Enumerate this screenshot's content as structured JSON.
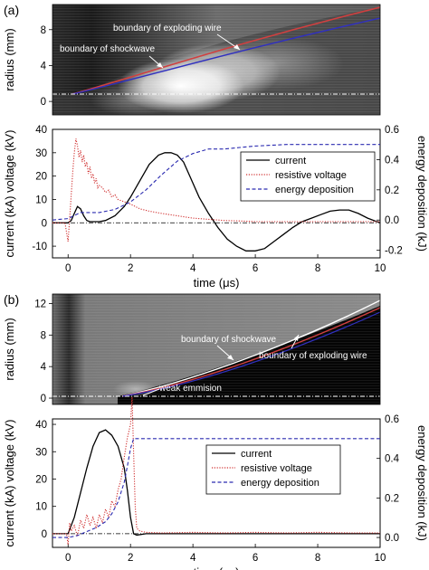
{
  "figure": {
    "panels": [
      {
        "label": "(a)",
        "streak": {
          "ylabel": "radius (mm)",
          "yticks": [
            0,
            4,
            8
          ],
          "ylim": [
            -1.5,
            10.8
          ],
          "annotations": [
            {
              "text": "boundary of exploding wire"
            },
            {
              "text": "boundary of shockwave"
            }
          ]
        }
      },
      {
        "label": "(b)",
        "streak": {
          "ylabel": "radius (mm)",
          "yticks": [
            0,
            4,
            8,
            12
          ],
          "ylim": [
            -0.8,
            13.2
          ],
          "annotations": [
            {
              "text": "boundary of shockwave"
            },
            {
              "text": "boundary of exploding wire"
            },
            {
              "text": "weak emmision"
            }
          ]
        }
      }
    ]
  },
  "chart_data": [
    {
      "type": "line",
      "panel": "(a)",
      "xlabel": "time (μs)",
      "ylabel_left": "current (kA) voltage (kV)",
      "ylabel_right": "energy deposition (kJ)",
      "xlim": [
        -0.5,
        10
      ],
      "ylim_left": [
        -15,
        40
      ],
      "ylim_right": [
        -0.25,
        0.6
      ],
      "xticks": [
        0,
        2,
        4,
        6,
        8,
        10
      ],
      "yticks_left": [
        -10,
        0,
        10,
        20,
        30,
        40
      ],
      "yticks_right": [
        -0.2,
        0.0,
        0.2,
        0.4,
        0.6
      ],
      "legend_position": "right",
      "series": [
        {
          "name": "current",
          "color": "#000000",
          "style": "solid",
          "axis": "left",
          "x": [
            -0.5,
            0,
            0.1,
            0.2,
            0.3,
            0.4,
            0.5,
            0.6,
            0.7,
            0.8,
            1.0,
            1.2,
            1.5,
            1.8,
            2.0,
            2.3,
            2.6,
            2.9,
            3.1,
            3.3,
            3.5,
            3.7,
            3.9,
            4.2,
            4.5,
            4.8,
            5.1,
            5.4,
            5.7,
            6.0,
            6.3,
            6.6,
            6.9,
            7.2,
            7.5,
            7.8,
            8.1,
            8.4,
            8.7,
            9.0,
            9.3,
            9.6,
            10.0
          ],
          "y": [
            0,
            0,
            1,
            4,
            7,
            6,
            3,
            1,
            0.5,
            0.5,
            0.5,
            1,
            3,
            7,
            11,
            18,
            25,
            29,
            30,
            30,
            29,
            26,
            20,
            11,
            4,
            -2,
            -7,
            -10,
            -12,
            -12,
            -11,
            -8,
            -5,
            -2,
            0.5,
            2,
            3.5,
            5,
            5.5,
            5.5,
            4,
            2,
            0
          ]
        },
        {
          "name": "resistive voltage",
          "color": "#d03030",
          "style": "dotted",
          "axis": "left",
          "x": [
            -0.5,
            -0.1,
            0,
            0.05,
            0.1,
            0.15,
            0.2,
            0.25,
            0.3,
            0.35,
            0.4,
            0.45,
            0.5,
            0.55,
            0.6,
            0.65,
            0.7,
            0.75,
            0.8,
            0.85,
            0.9,
            0.95,
            1.0,
            1.1,
            1.2,
            1.3,
            1.4,
            1.5,
            1.6,
            1.8,
            2.0,
            2.3,
            2.6,
            3.0,
            3.5,
            4.0,
            4.5,
            5.0,
            5.5,
            6.0,
            7.0,
            8.0,
            9.0,
            10.0
          ],
          "y": [
            0,
            0,
            -8,
            2,
            12,
            22,
            30,
            36,
            33,
            28,
            31,
            26,
            29,
            24,
            26,
            21,
            24,
            19,
            21,
            17,
            19,
            15,
            16,
            15,
            13,
            14,
            11,
            12,
            10,
            9,
            8,
            6,
            5,
            4,
            3,
            2,
            1.5,
            1,
            0.8,
            0.5,
            0.5,
            0.5,
            0.5,
            0.5
          ]
        },
        {
          "name": "energy deposition",
          "color": "#2a2ab0",
          "style": "dashed",
          "axis": "right",
          "x": [
            -0.5,
            0,
            0.2,
            0.4,
            0.6,
            0.8,
            1.0,
            1.5,
            2.0,
            2.5,
            3.0,
            3.5,
            4.0,
            4.5,
            5.0,
            5.5,
            6.0,
            7.0,
            8.0,
            9.0,
            10.0
          ],
          "y": [
            0.0,
            0.01,
            0.03,
            0.05,
            0.05,
            0.05,
            0.05,
            0.07,
            0.12,
            0.2,
            0.3,
            0.39,
            0.44,
            0.47,
            0.47,
            0.48,
            0.49,
            0.5,
            0.5,
            0.5,
            0.5
          ]
        }
      ]
    },
    {
      "type": "line",
      "panel": "(b)",
      "xlabel": "time (μs)",
      "ylabel_left": "current (kA) voltage (kV)",
      "ylabel_right": "energy deposition (kJ)",
      "xlim": [
        -0.5,
        10
      ],
      "ylim_left": [
        -5,
        42
      ],
      "ylim_right": [
        -0.05,
        0.6
      ],
      "xticks": [
        0,
        2,
        4,
        6,
        8,
        10
      ],
      "yticks_left": [
        0,
        10,
        20,
        30,
        40
      ],
      "yticks_right": [
        0.0,
        0.2,
        0.4,
        0.6
      ],
      "legend_position": "right",
      "series": [
        {
          "name": "current",
          "color": "#000000",
          "style": "solid",
          "axis": "left",
          "x": [
            -0.5,
            0,
            0.2,
            0.4,
            0.6,
            0.8,
            1.0,
            1.2,
            1.4,
            1.6,
            1.8,
            1.9,
            2.0,
            2.1,
            2.2,
            2.5,
            3.0,
            4.0,
            6.0,
            8.0,
            10.0
          ],
          "y": [
            0,
            0,
            6,
            15,
            24,
            32,
            37,
            38,
            36,
            32,
            24,
            16,
            6,
            0,
            -0.5,
            0,
            0,
            0,
            0,
            0,
            0
          ]
        },
        {
          "name": "resistive voltage",
          "color": "#d03030",
          "style": "dotted",
          "axis": "left",
          "x": [
            -0.5,
            -0.05,
            0,
            0.05,
            0.1,
            0.2,
            0.3,
            0.4,
            0.5,
            0.6,
            0.7,
            0.8,
            0.9,
            1.0,
            1.1,
            1.2,
            1.3,
            1.4,
            1.5,
            1.6,
            1.7,
            1.8,
            1.9,
            2.0,
            2.05,
            2.1,
            2.15,
            2.2,
            2.3,
            2.5,
            3.0,
            4.0,
            5.0,
            6.0,
            7.0,
            8.0,
            9.0,
            10.0
          ],
          "y": [
            0,
            0,
            -4,
            4,
            1,
            3,
            -1,
            5,
            2,
            7,
            3,
            6,
            2,
            7,
            4,
            9,
            6,
            12,
            10,
            16,
            20,
            28,
            35,
            40,
            50,
            30,
            10,
            2,
            1,
            0.5,
            0.3,
            0.5,
            0.3,
            0.5,
            0.3,
            0.5,
            0.3,
            0.3
          ]
        },
        {
          "name": "energy deposition",
          "color": "#2a2ab0",
          "style": "dashed",
          "axis": "right",
          "x": [
            -0.5,
            0,
            0.3,
            0.6,
            0.9,
            1.2,
            1.4,
            1.6,
            1.8,
            1.9,
            2.0,
            2.1,
            2.2,
            3.0,
            4.0,
            6.0,
            8.0,
            10.0
          ],
          "y": [
            0,
            0,
            0.01,
            0.03,
            0.05,
            0.08,
            0.12,
            0.18,
            0.28,
            0.36,
            0.45,
            0.5,
            0.5,
            0.5,
            0.5,
            0.5,
            0.5,
            0.5
          ]
        }
      ]
    }
  ]
}
